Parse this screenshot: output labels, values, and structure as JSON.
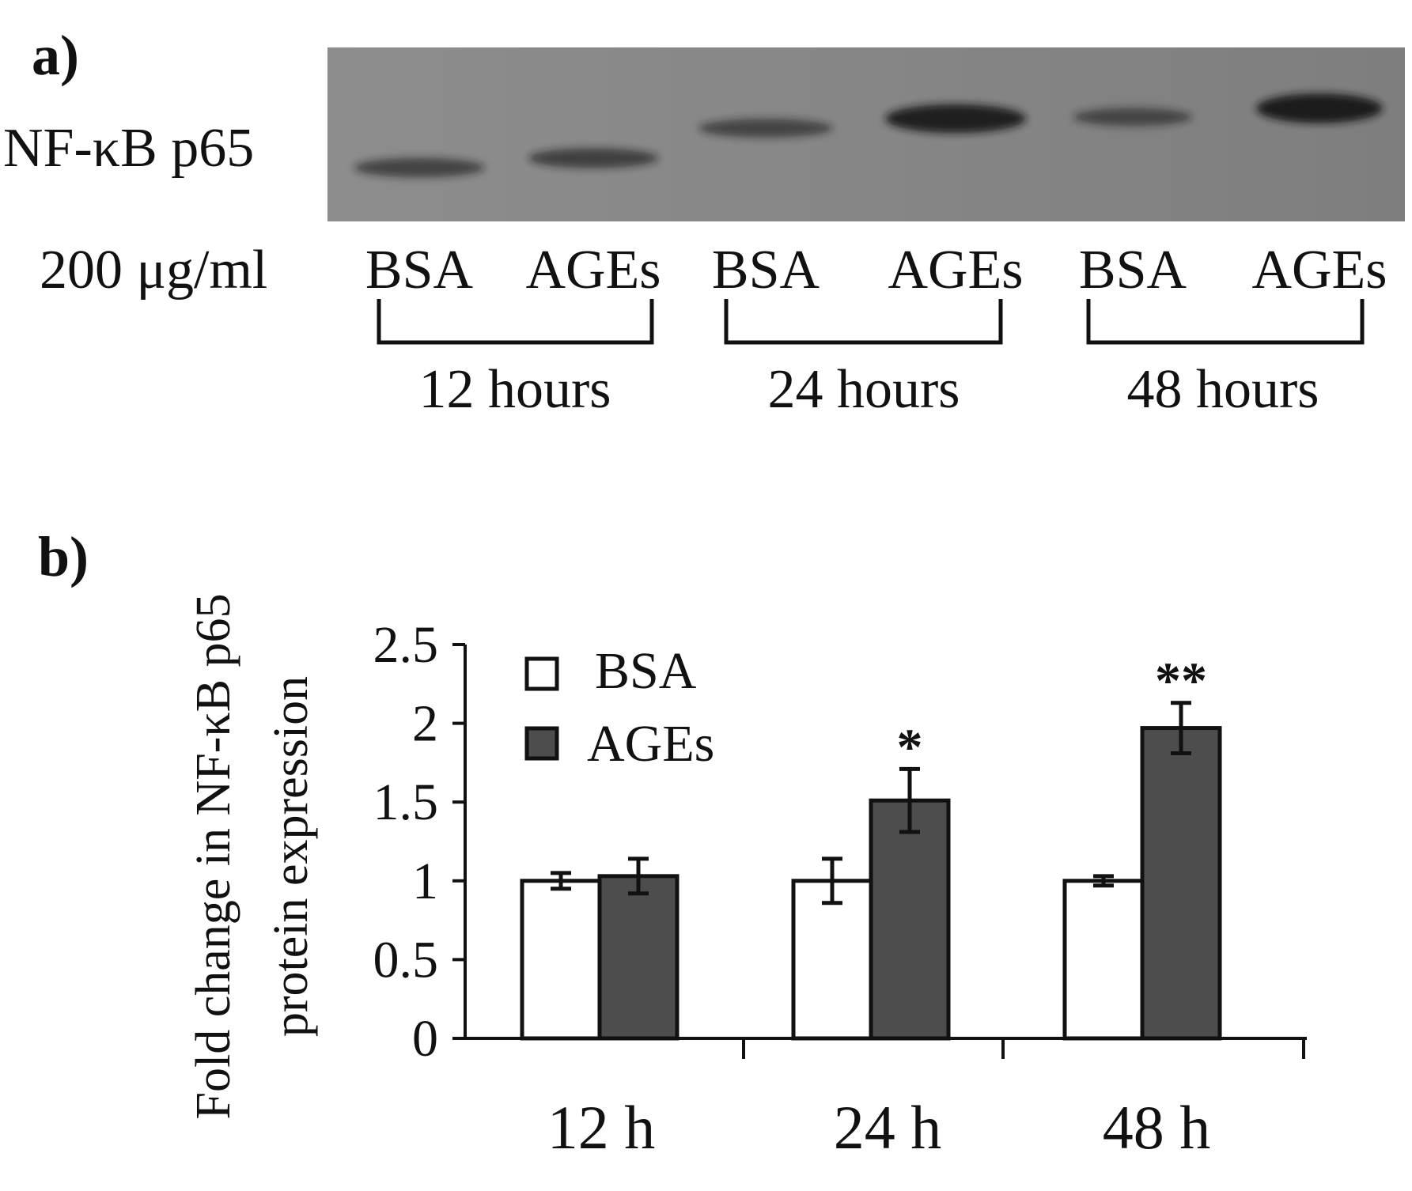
{
  "panel_a": {
    "label": "a)",
    "protein_label": "NF-κB p65",
    "dose_label": "200 μg/ml",
    "lanes": [
      {
        "label": "BSA",
        "band_intensity": 0.35
      },
      {
        "label": "AGEs",
        "band_intensity": 0.38
      },
      {
        "label": "BSA",
        "band_intensity": 0.32
      },
      {
        "label": "AGEs",
        "band_intensity": 0.85
      },
      {
        "label": "BSA",
        "band_intensity": 0.28
      },
      {
        "label": "AGEs",
        "band_intensity": 0.9
      }
    ],
    "groups": [
      "12 hours",
      "24 hours",
      "48 hours"
    ]
  },
  "panel_b": {
    "label": "b)",
    "ylabel_line1": "Fold change in NF-κB p65",
    "ylabel_line2": "protein expression",
    "yticks": [
      "0",
      "0.5",
      "1",
      "1.5",
      "2",
      "2.5"
    ],
    "legend": [
      "BSA",
      "AGEs"
    ]
  },
  "colors": {
    "bsa": "#ffffff",
    "ages": "#4d4d4d",
    "blot_bg": "#888888",
    "band": "#141414"
  },
  "chart_data": {
    "type": "bar",
    "title": "",
    "xlabel": "",
    "ylabel": "Fold change in NF-κB p65 protein expression",
    "categories": [
      "12 h",
      "24 h",
      "48 h"
    ],
    "ylim": [
      0,
      2.5
    ],
    "series": [
      {
        "name": "BSA",
        "values": [
          1.0,
          1.0,
          1.0
        ],
        "errors": [
          0.05,
          0.14,
          0.03
        ]
      },
      {
        "name": "AGEs",
        "values": [
          1.03,
          1.51,
          1.97
        ],
        "errors": [
          0.11,
          0.2,
          0.16
        ]
      }
    ],
    "annotations": [
      "",
      "*",
      "**"
    ],
    "legend_position": "top-left"
  }
}
